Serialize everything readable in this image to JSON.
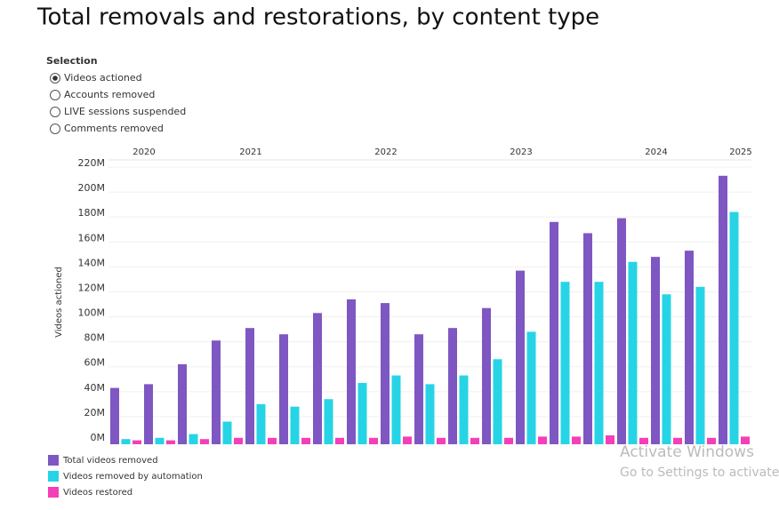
{
  "chart_data": {
    "type": "bar",
    "title": "Total removals and restorations, by content type",
    "selection": {
      "label": "Selection",
      "options": [
        "Videos actioned",
        "Accounts removed",
        "LIVE sessions suspended",
        "Comments removed"
      ],
      "selected": 0
    },
    "y_label": "Videos actioned",
    "years": [
      {
        "name": "2020",
        "groups": 2
      },
      {
        "name": "2021",
        "groups": 4
      },
      {
        "name": "2022",
        "groups": 4
      },
      {
        "name": "2023",
        "groups": 4
      },
      {
        "name": "2024",
        "groups": 4
      },
      {
        "name": "2025",
        "groups": 1
      }
    ],
    "series": [
      {
        "name": "Total videos removed",
        "color": "#7e57c2",
        "values": [
          43,
          46,
          62,
          81,
          91,
          86,
          103,
          114,
          111,
          86,
          91,
          107,
          137,
          176,
          167,
          179,
          148,
          153,
          213
        ]
      },
      {
        "name": "Videos removed by automation",
        "color": "#26d4e6",
        "values": [
          2,
          3,
          6,
          16,
          30,
          28,
          34,
          47,
          53,
          46,
          53,
          66,
          88,
          128,
          128,
          144,
          118,
          124,
          184
        ]
      },
      {
        "name": "Videos restored",
        "color": "#f43fb8",
        "values": [
          1,
          1,
          2,
          3,
          3,
          3,
          3,
          3,
          4,
          3,
          3,
          3,
          4,
          4,
          5,
          3,
          3,
          3,
          4
        ]
      }
    ],
    "ylim": [
      0,
      220
    ],
    "yticks": [
      {
        "value": 0,
        "label": "0M"
      },
      {
        "value": 20,
        "label": "20M"
      },
      {
        "value": 40,
        "label": "40M"
      },
      {
        "value": 60,
        "label": "60M"
      },
      {
        "value": 80,
        "label": "80M"
      },
      {
        "value": 100,
        "label": "100M"
      },
      {
        "value": 120,
        "label": "120M"
      },
      {
        "value": 140,
        "label": "140M"
      },
      {
        "value": 160,
        "label": "160M"
      },
      {
        "value": 180,
        "label": "180M"
      },
      {
        "value": 200,
        "label": "200M"
      },
      {
        "value": 220,
        "label": "220M"
      }
    ],
    "grid": true,
    "watermark": [
      "Activate Windows",
      "Go to Settings to activate W"
    ]
  }
}
